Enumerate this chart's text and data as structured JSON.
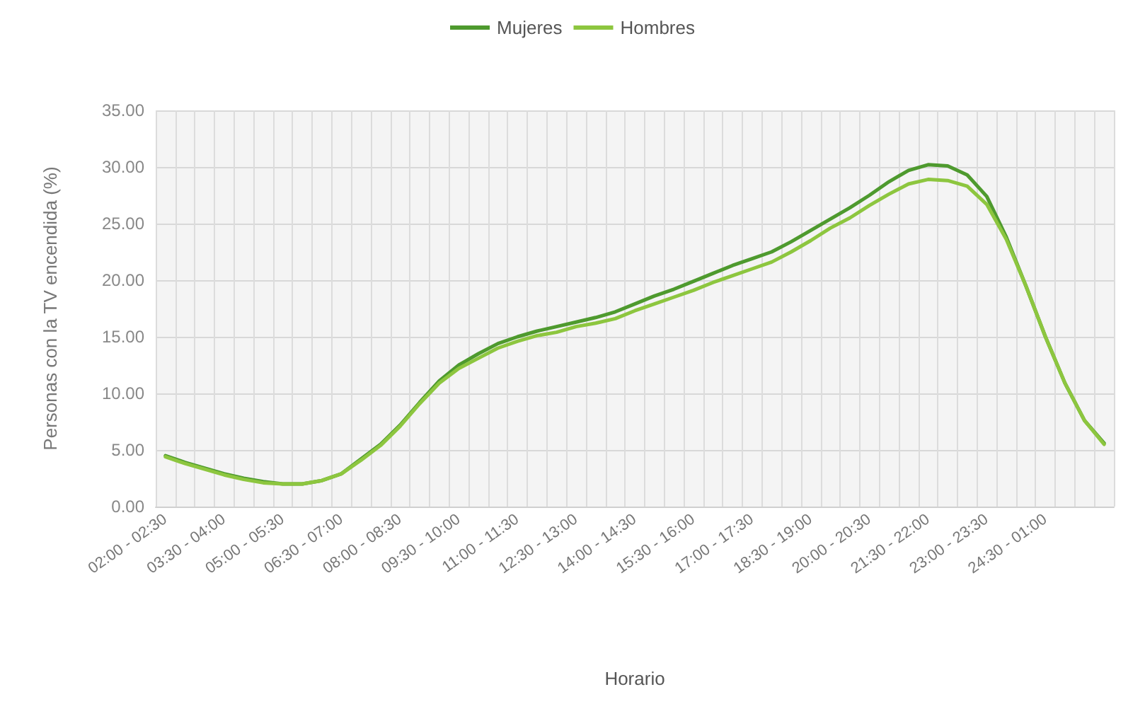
{
  "chart_data": {
    "type": "line",
    "xlabel": "Horario",
    "ylabel": "Personas con la TV encendida (%)",
    "categories": [
      "02:00 - 02:30",
      null,
      null,
      "03:30 - 04:00",
      null,
      null,
      "05:00 - 05:30",
      null,
      null,
      "06:30 - 07:00",
      null,
      null,
      "08:00 - 08:30",
      null,
      null,
      "09:30 - 10:00",
      null,
      null,
      "11:00 - 11:30",
      null,
      null,
      "12:30 - 13:00",
      null,
      null,
      "14:00 - 14:30",
      null,
      null,
      "15:30 - 16:00",
      null,
      null,
      "17:00 - 17:30",
      null,
      null,
      "18:30 - 19:00",
      null,
      null,
      "20:00 - 20:30",
      null,
      null,
      "21:30 - 22:00",
      null,
      null,
      "23:00 - 23:30",
      null,
      null,
      "24:30 - 01:00",
      null,
      null,
      null
    ],
    "series": [
      {
        "name": "Mujeres",
        "color": "#4e9a2e",
        "values": [
          4.5,
          3.9,
          3.4,
          2.9,
          2.5,
          2.2,
          2.0,
          2.0,
          2.3,
          2.9,
          4.2,
          5.5,
          7.2,
          9.2,
          11.1,
          12.5,
          13.5,
          14.4,
          15.0,
          15.5,
          15.9,
          16.3,
          16.7,
          17.2,
          17.9,
          18.6,
          19.2,
          19.9,
          20.6,
          21.3,
          21.9,
          22.5,
          23.4,
          24.4,
          25.4,
          26.4,
          27.5,
          28.7,
          29.7,
          30.2,
          30.1,
          29.3,
          27.4,
          23.8,
          19.5,
          15.0,
          10.9,
          7.6,
          5.6
        ]
      },
      {
        "name": "Hombres",
        "color": "#8dc63f",
        "values": [
          4.4,
          3.8,
          3.3,
          2.8,
          2.4,
          2.1,
          2.0,
          2.0,
          2.3,
          2.9,
          4.1,
          5.4,
          7.1,
          9.1,
          10.9,
          12.2,
          13.1,
          14.0,
          14.6,
          15.1,
          15.4,
          15.9,
          16.2,
          16.6,
          17.3,
          17.9,
          18.5,
          19.1,
          19.8,
          20.4,
          21.0,
          21.6,
          22.5,
          23.5,
          24.6,
          25.5,
          26.6,
          27.6,
          28.5,
          28.9,
          28.8,
          28.3,
          26.7,
          23.6,
          19.5,
          15.0,
          10.9,
          7.6,
          5.5
        ]
      }
    ],
    "ylim": [
      0,
      35
    ],
    "yticks": [
      {
        "value": 0,
        "label": "0.00"
      },
      {
        "value": 5,
        "label": "5.00"
      },
      {
        "value": 10,
        "label": "10.00"
      },
      {
        "value": 15,
        "label": "15.00"
      },
      {
        "value": 20,
        "label": "20.00"
      },
      {
        "value": 25,
        "label": "25.00"
      },
      {
        "value": 30,
        "label": "30.00"
      },
      {
        "value": 35,
        "label": "35.00"
      }
    ],
    "grid": true,
    "legend": "top",
    "marker": "none",
    "line_style": "solid"
  }
}
